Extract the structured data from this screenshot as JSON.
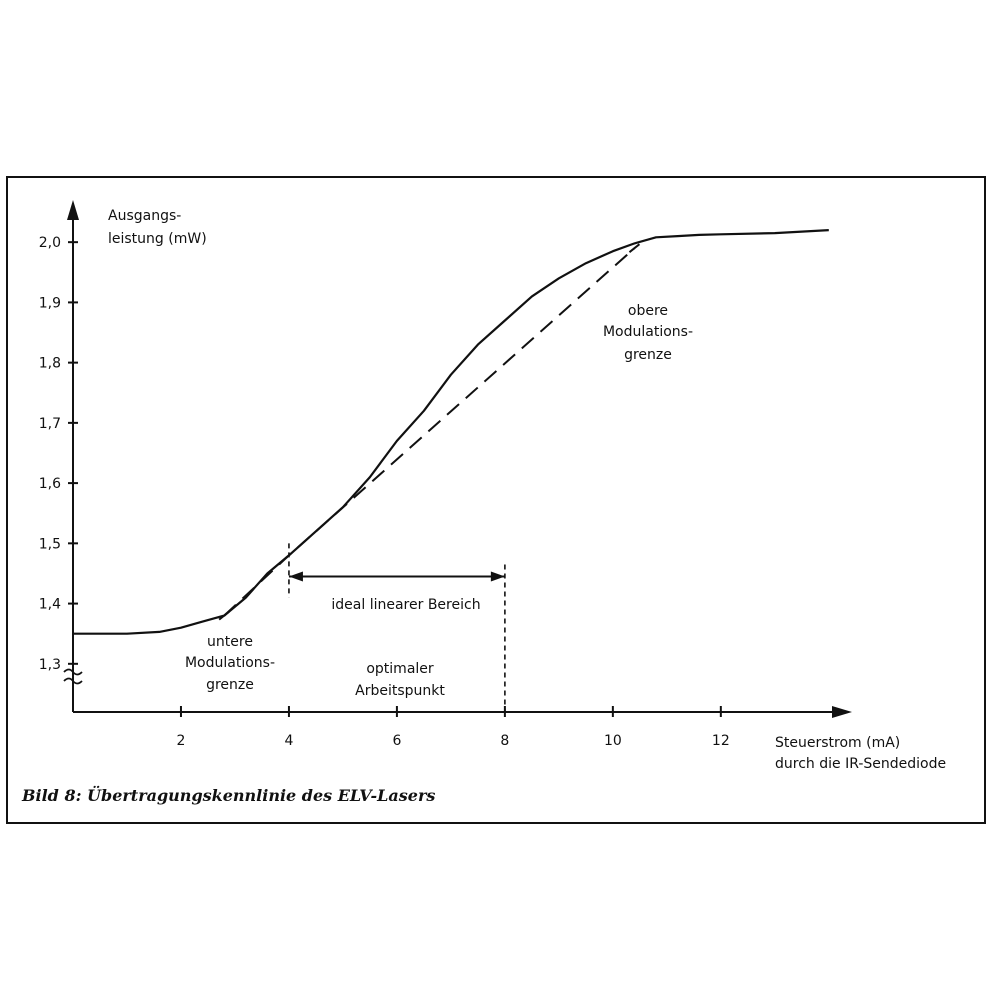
{
  "chart_data": {
    "type": "line",
    "caption": "Bild 8: Übertragungskennlinie des ELV-Lasers",
    "ylabel_lines": [
      "Ausgangs-",
      "leistung (mW)"
    ],
    "xlabel_lines": [
      "Steuerstrom (mA)",
      "durch die IR-Sendediode"
    ],
    "xlim": [
      0,
      14.3
    ],
    "ylim": [
      1.22,
      2.07
    ],
    "y_axis_break_below": 1.3,
    "x_ticks": [
      {
        "value": 2,
        "label": "2"
      },
      {
        "value": 4,
        "label": "4"
      },
      {
        "value": 6,
        "label": "6"
      },
      {
        "value": 8,
        "label": "8"
      },
      {
        "value": 10,
        "label": "10"
      },
      {
        "value": 12,
        "label": "12"
      }
    ],
    "y_ticks": [
      {
        "value": 1.3,
        "label": "1,3"
      },
      {
        "value": 1.4,
        "label": "1,4"
      },
      {
        "value": 1.5,
        "label": "1,5"
      },
      {
        "value": 1.6,
        "label": "1,6"
      },
      {
        "value": 1.7,
        "label": "1,7"
      },
      {
        "value": 1.8,
        "label": "1,8"
      },
      {
        "value": 1.9,
        "label": "1,9"
      },
      {
        "value": 2.0,
        "label": "2,0"
      }
    ],
    "series": [
      {
        "style": "solid",
        "x": [
          0.0,
          1.0,
          1.6,
          2.0,
          2.4,
          2.8,
          3.2,
          3.6,
          4.0,
          4.5,
          5.0,
          5.5,
          6.0,
          6.5,
          7.0,
          7.5,
          8.0,
          8.5,
          9.0,
          9.5,
          10.0,
          10.4,
          10.8,
          11.2,
          11.6,
          12.0,
          13.0,
          14.0
        ],
        "y": [
          1.35,
          1.35,
          1.353,
          1.36,
          1.37,
          1.38,
          1.41,
          1.45,
          1.48,
          1.52,
          1.56,
          1.61,
          1.67,
          1.72,
          1.78,
          1.83,
          1.87,
          1.91,
          1.94,
          1.965,
          1.985,
          1.998,
          2.008,
          2.01,
          2.012,
          2.013,
          2.015,
          2.02
        ]
      },
      {
        "style": "dashed",
        "x": [
          2.8,
          4.0,
          10.4
        ],
        "y": [
          1.38,
          1.48,
          1.99
        ]
      }
    ],
    "range_bracket": {
      "from": 4.0,
      "to": 8.0,
      "y": 1.445,
      "label": "ideal linearer Bereich"
    },
    "annotations": [
      {
        "lines": [
          "untere",
          "Modulations-",
          "grenze"
        ],
        "point": {
          "x": 2.8,
          "y": 1.38
        }
      },
      {
        "lines": [
          "obere",
          "Modulations-",
          "grenze"
        ],
        "point": {
          "x": 10.4,
          "y": 1.99
        }
      },
      {
        "lines": [
          "optimaler",
          "Arbeitspunkt"
        ]
      }
    ]
  }
}
